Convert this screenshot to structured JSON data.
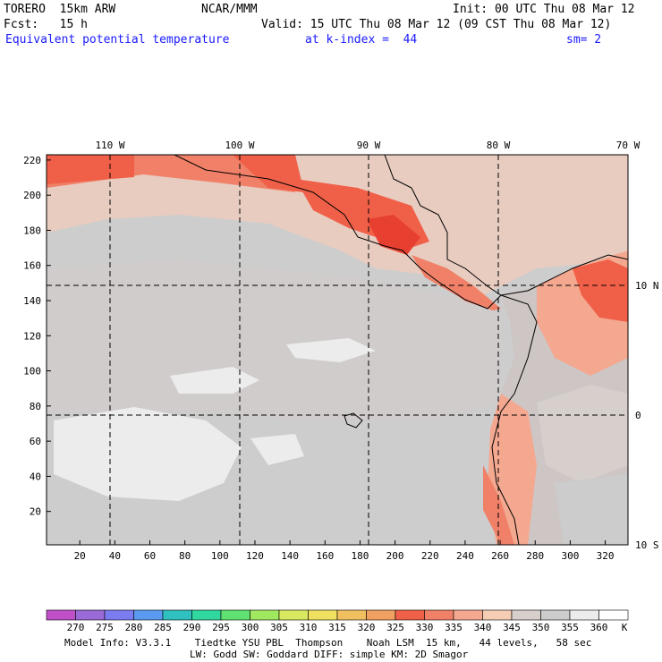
{
  "header": {
    "model": "TORERO  15km ARW",
    "org": "NCAR/MMM",
    "init": "Init: 00 UTC Thu 08 Mar 12",
    "fcst": "Fcst:   15 h",
    "valid": "Valid: 15 UTC Thu 08 Mar 12 (09 CST Thu 08 Mar 12)",
    "field": "Equivalent potential temperature",
    "level": "at k-index =  44",
    "smooth": "sm= 2"
  },
  "map": {
    "lon_labels": [
      "110 W",
      "100 W",
      "90 W",
      "80 W",
      "70 W"
    ],
    "lat_labels": [
      "10 N",
      "0",
      "10 S"
    ],
    "y_ticks": [
      "220",
      "200",
      "180",
      "160",
      "140",
      "120",
      "100",
      "80",
      "60",
      "40",
      "20"
    ],
    "x_ticks": [
      "20",
      "40",
      "60",
      "80",
      "100",
      "120",
      "140",
      "160",
      "180",
      "200",
      "220",
      "240",
      "260",
      "280",
      "300",
      "320"
    ]
  },
  "colorbar": {
    "unit": "K",
    "labels": [
      "270",
      "275",
      "280",
      "285",
      "290",
      "295",
      "300",
      "305",
      "310",
      "315",
      "320",
      "325",
      "330",
      "335",
      "340",
      "345",
      "350",
      "355",
      "360"
    ],
    "colors": [
      "#c050c8",
      "#9a6ad6",
      "#7a7cf0",
      "#5a9af0",
      "#30c0c0",
      "#30d8a0",
      "#60e070",
      "#a0e860",
      "#d8e860",
      "#f0e060",
      "#f0c060",
      "#f0a060",
      "#f06048",
      "#f08068",
      "#f4a890",
      "#f4cdb4",
      "#d6cfcb",
      "#cccccc",
      "#ececec",
      "#ffffff"
    ]
  },
  "footer": {
    "line1": "Model Info: V3.3.1    Tiedtke YSU PBL  Thompson    Noah LSM  15 km,   44 levels,   58 sec",
    "line2": "LW: Godd SW: Goddard DIFF: simple KM: 2D Smagor"
  }
}
